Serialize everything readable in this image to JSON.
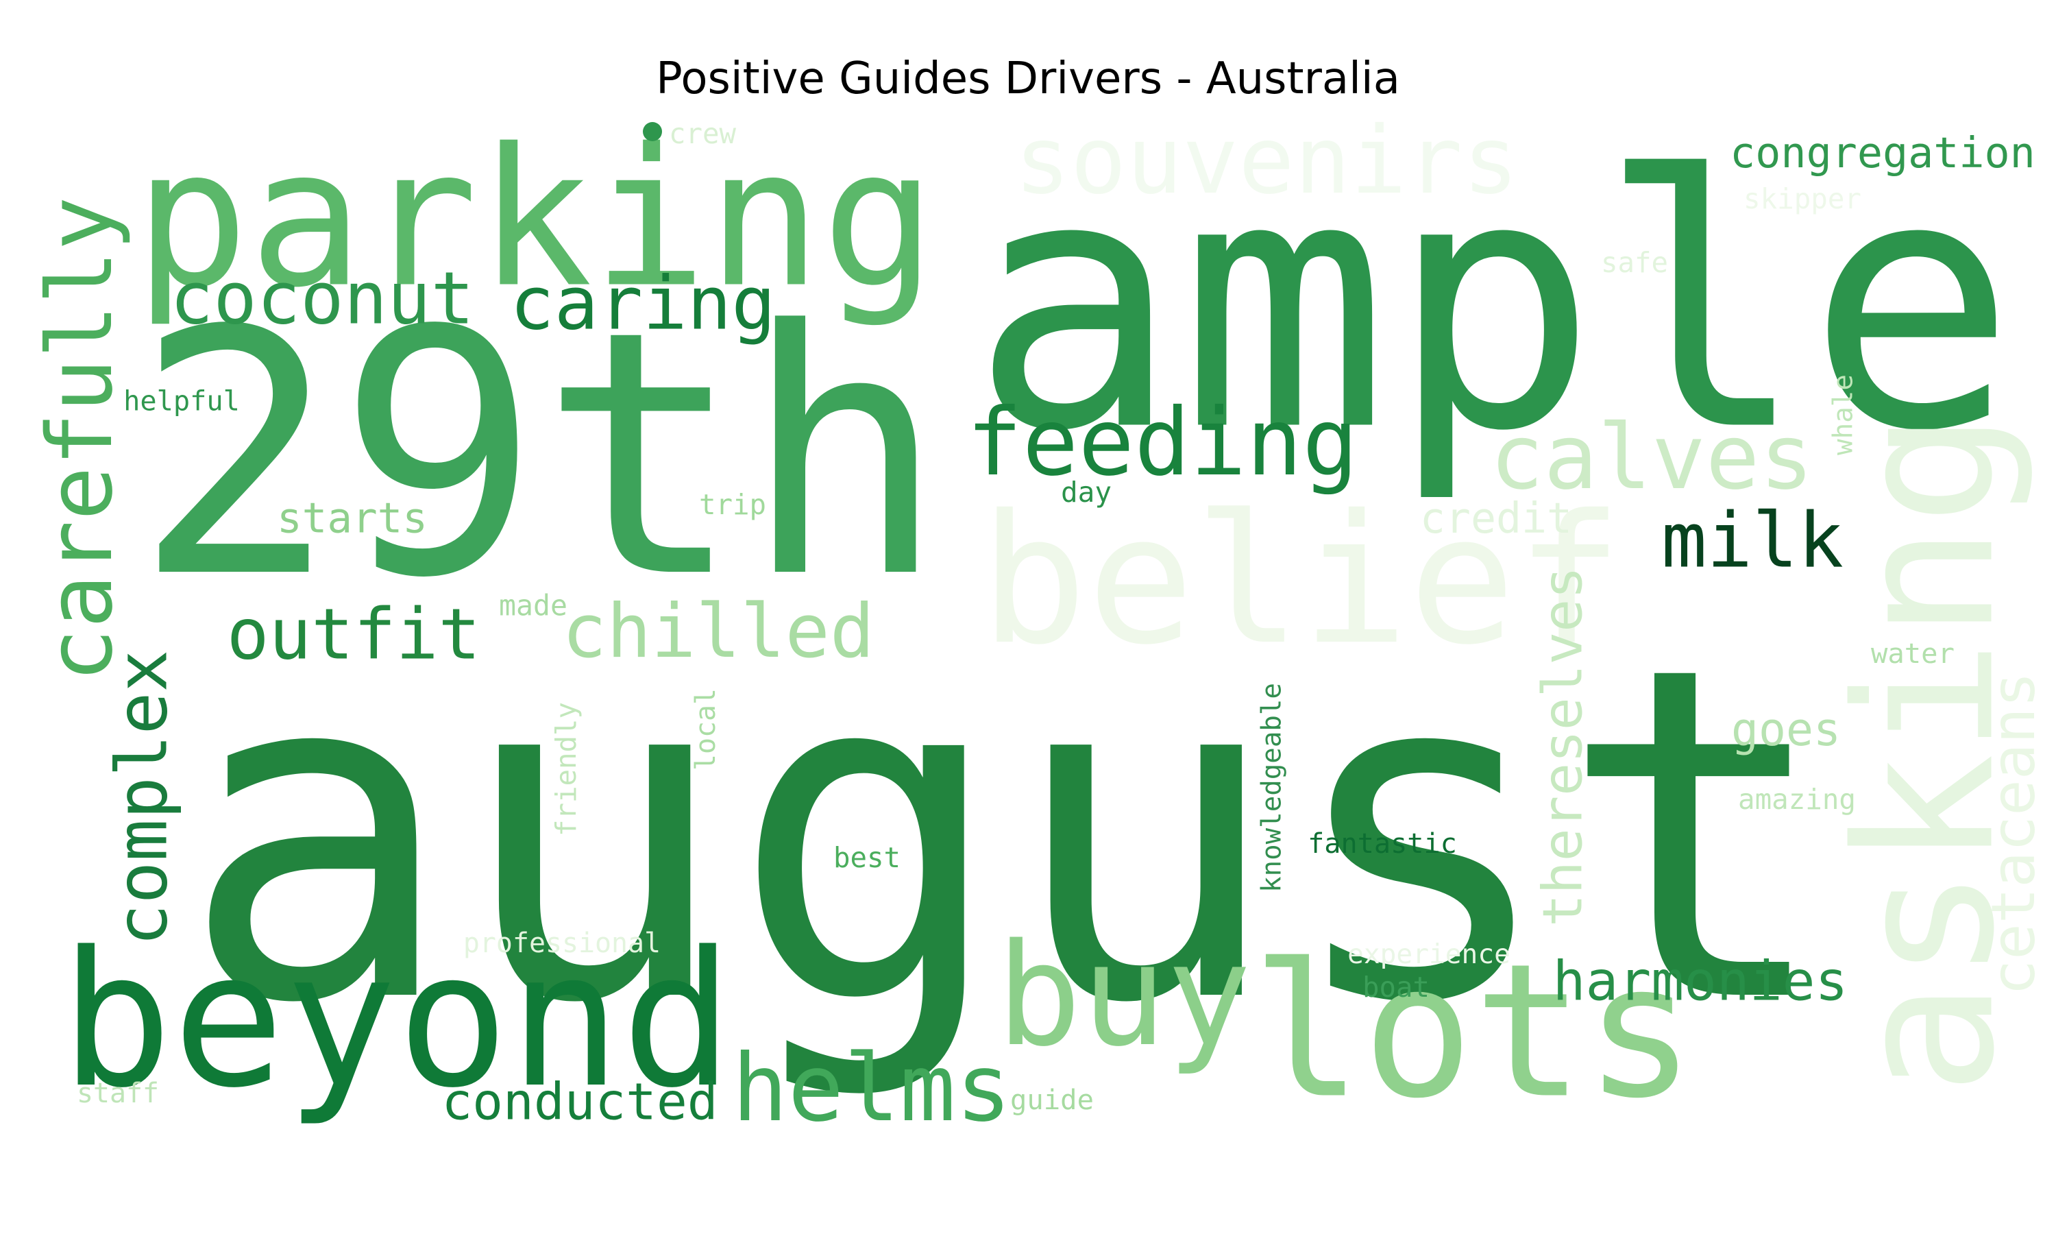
{
  "chart_data": {
    "type": "wordcloud",
    "title": "Positive Guides Drivers - Australia",
    "colormap": "Greens",
    "background": "#ffffff",
    "words": [
      {
        "text": "august",
        "color": "#22843e",
        "orientation": "horizontal"
      },
      {
        "text": "ample",
        "color": "#2c944c",
        "orientation": "horizontal"
      },
      {
        "text": "29th",
        "color": "#3da35a",
        "orientation": "horizontal"
      },
      {
        "text": "parking",
        "color": "#5bb86a",
        "orientation": "horizontal"
      },
      {
        "text": "belief",
        "color": "#eff8ea",
        "orientation": "horizontal"
      },
      {
        "text": "asking",
        "color": "#e5f5e0",
        "orientation": "vertical"
      },
      {
        "text": "lots",
        "color": "#90d18d",
        "orientation": "horizontal"
      },
      {
        "text": "beyond",
        "color": "#0f7a37",
        "orientation": "horizontal"
      },
      {
        "text": "buy",
        "color": "#8ccf8a",
        "orientation": "horizontal"
      },
      {
        "text": "carefully",
        "color": "#4cae5d",
        "orientation": "vertical"
      },
      {
        "text": "souvenirs",
        "color": "#f2faf0",
        "orientation": "horizontal"
      },
      {
        "text": "feeding",
        "color": "#19833d",
        "orientation": "horizontal"
      },
      {
        "text": "helms",
        "color": "#41a85a",
        "orientation": "horizontal"
      },
      {
        "text": "complex",
        "color": "#197c3d",
        "orientation": "vertical"
      },
      {
        "text": "calves",
        "color": "#cdebc6",
        "orientation": "horizontal"
      },
      {
        "text": "coconut",
        "color": "#2e964d",
        "orientation": "horizontal"
      },
      {
        "text": "caring",
        "color": "#157e3a",
        "orientation": "horizontal"
      },
      {
        "text": "chilled",
        "color": "#a9dca3",
        "orientation": "horizontal"
      },
      {
        "text": "outfit",
        "color": "#23893f",
        "orientation": "horizontal"
      },
      {
        "text": "milk",
        "color": "#07421e",
        "orientation": "horizontal"
      },
      {
        "text": "cetaceans",
        "color": "#eaf7e5",
        "orientation": "vertical"
      },
      {
        "text": "thereselves",
        "color": "#c7e9c0",
        "orientation": "vertical"
      },
      {
        "text": "harmonies",
        "color": "#278f48",
        "orientation": "horizontal"
      },
      {
        "text": "conducted",
        "color": "#157f3b",
        "orientation": "horizontal"
      },
      {
        "text": "congregation",
        "color": "#31984f",
        "orientation": "horizontal"
      },
      {
        "text": "starts",
        "color": "#8fd08c",
        "orientation": "horizontal"
      },
      {
        "text": "credit",
        "color": "#e3f4de",
        "orientation": "horizontal"
      },
      {
        "text": "goes",
        "color": "#b7e2b1",
        "orientation": "horizontal"
      },
      {
        "text": "helpful",
        "color": "#2f974e",
        "orientation": "horizontal"
      },
      {
        "text": "crew",
        "color": "#d9f0d3",
        "orientation": "horizontal"
      },
      {
        "text": "skipper",
        "color": "#eef8ea",
        "orientation": "horizontal"
      },
      {
        "text": "safe",
        "color": "#e2f4dd",
        "orientation": "horizontal"
      },
      {
        "text": "whale",
        "color": "#bfe6b8",
        "orientation": "vertical"
      },
      {
        "text": "day",
        "color": "#2a924a",
        "orientation": "horizontal"
      },
      {
        "text": "trip",
        "color": "#a0d99b",
        "orientation": "horizontal"
      },
      {
        "text": "made",
        "color": "#a8dba2",
        "orientation": "horizontal"
      },
      {
        "text": "water",
        "color": "#b2e0ac",
        "orientation": "horizontal"
      },
      {
        "text": "local",
        "color": "#aadda4",
        "orientation": "vertical"
      },
      {
        "text": "friendly",
        "color": "#c2e7bb",
        "orientation": "vertical"
      },
      {
        "text": "knowledgeable",
        "color": "#328e4f",
        "orientation": "vertical"
      },
      {
        "text": "amazing",
        "color": "#c0e6b9",
        "orientation": "horizontal"
      },
      {
        "text": "fantastic",
        "color": "#0d6e32",
        "orientation": "horizontal"
      },
      {
        "text": "best",
        "color": "#4bae5d",
        "orientation": "horizontal"
      },
      {
        "text": "professional",
        "color": "#e3f4de",
        "orientation": "horizontal"
      },
      {
        "text": "experience",
        "color": "#eaf6e6",
        "orientation": "horizontal"
      },
      {
        "text": "boat",
        "color": "#3a9e58",
        "orientation": "horizontal"
      },
      {
        "text": "staff",
        "color": "#bfe5b8",
        "orientation": "horizontal"
      },
      {
        "text": "guide",
        "color": "#a6dba0",
        "orientation": "horizontal"
      },
      {
        "text": "",
        "color": "#2e964d",
        "orientation": "horizontal",
        "shape": "dot"
      }
    ]
  }
}
